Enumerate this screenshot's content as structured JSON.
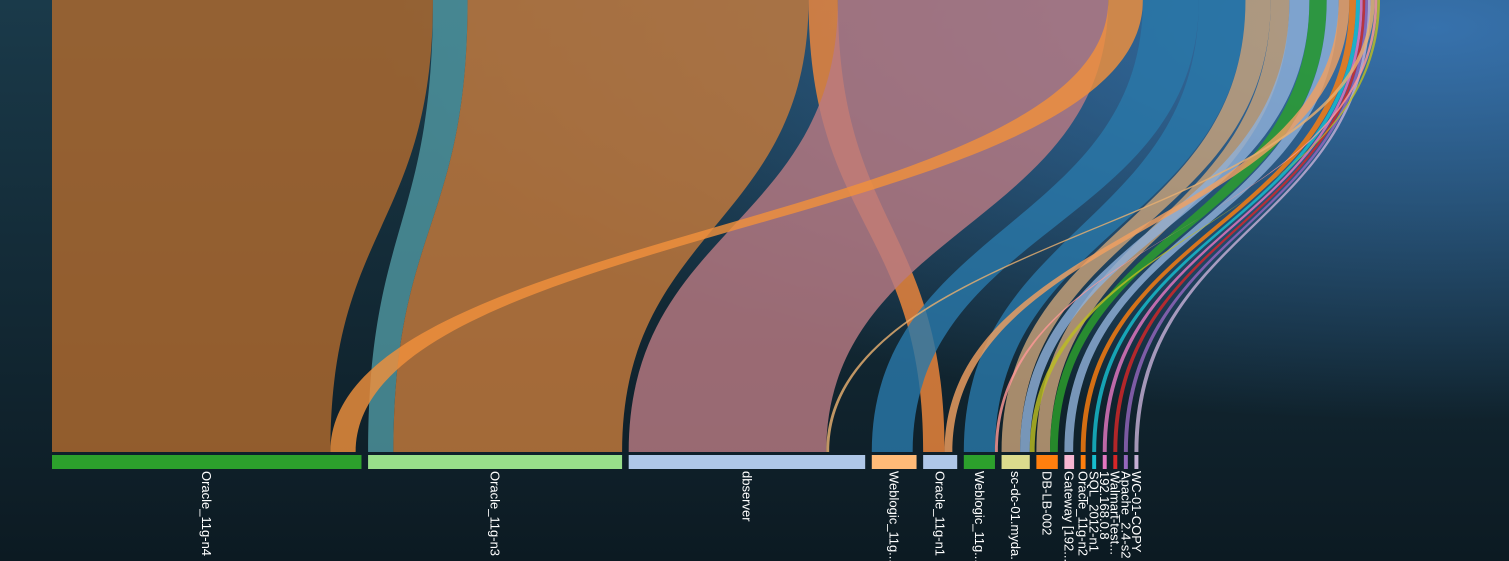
{
  "chart_data": {
    "type": "sankey",
    "title": "",
    "targets": [
      {
        "label": "Oracle_11g-n4",
        "value": 31.8,
        "color": "#2ca02c"
      },
      {
        "label": "Oracle_11g-n3",
        "value": 26.1,
        "color": "#98df8a"
      },
      {
        "label": "dbserver",
        "value": 24.3,
        "color": "#aec7e8"
      },
      {
        "label": "Weblogic_11g...",
        "value": 4.6,
        "color": "#ffbb78"
      },
      {
        "label": "Oracle_11g-n1",
        "value": 3.5,
        "color": "#aec7e8"
      },
      {
        "label": "Weblogic_11g...",
        "value": 3.2,
        "color": "#2ca02c"
      },
      {
        "label": "sc-dc-01.myda...",
        "value": 2.9,
        "color": "#dbdb8d"
      },
      {
        "label": "DB-LB-002",
        "value": 2.2,
        "color": "#ff7f0e"
      },
      {
        "label": "Gateway [192...",
        "value": 1.0,
        "color": "#f7b6d2"
      },
      {
        "label": "Oracle_11g-n2",
        "value": 0.5,
        "color": "#ff7f0e"
      },
      {
        "label": "SQL_2012-n1",
        "value": 0.3,
        "color": "#17becf"
      },
      {
        "label": "192.168.0.8",
        "value": 0.2,
        "color": "#e377c2"
      },
      {
        "label": "Walmart-test...",
        "value": 0.2,
        "color": "#d62728"
      },
      {
        "label": "Apache_2.4-s2",
        "value": 0.2,
        "color": "#9467bd"
      },
      {
        "label": "WC-01-COPY",
        "value": 0.2,
        "color": "#c5b0d5"
      }
    ],
    "flows": [
      {
        "source": 0,
        "target": 0,
        "value": 28.6,
        "color": "#b06a2e"
      },
      {
        "source": 0,
        "target": 1,
        "value": 2.6,
        "color": "#4f96a0"
      },
      {
        "source": 1,
        "target": 1,
        "value": 25.6,
        "color": "#c47a3c"
      },
      {
        "source": 1,
        "target": 4,
        "value": 2.2,
        "color": "#f0883c"
      },
      {
        "source": 2,
        "target": 2,
        "value": 20.3,
        "color": "#b87a82"
      },
      {
        "source": 3,
        "target": 0,
        "value": 2.6,
        "color": "#f0903c"
      },
      {
        "source": 3,
        "target": 3,
        "value": 4.2,
        "color": "#2a78a8"
      },
      {
        "source": 3,
        "target": 5,
        "value": 3.5,
        "color": "#2a78a8"
      },
      {
        "source": 4,
        "target": 6,
        "value": 1.9,
        "color": "#c8a27a"
      },
      {
        "source": 4,
        "target": 7,
        "value": 1.4,
        "color": "#c8a27a"
      },
      {
        "source": 5,
        "target": 6,
        "value": 1.5,
        "color": "#8fb0d8"
      },
      {
        "source": 6,
        "target": 7,
        "value": 1.3,
        "color": "#2ca02c"
      },
      {
        "source": 6,
        "target": 8,
        "value": 0.9,
        "color": "#8fb0d8"
      },
      {
        "source": 7,
        "target": 4,
        "value": 0.8,
        "color": "#f0a060"
      },
      {
        "source": 7,
        "target": 9,
        "value": 0.5,
        "color": "#ff7f0e"
      },
      {
        "source": 8,
        "target": 10,
        "value": 0.3,
        "color": "#17becf"
      },
      {
        "source": 9,
        "target": 11,
        "value": 0.2,
        "color": "#e377c2"
      },
      {
        "source": 10,
        "target": 12,
        "value": 0.2,
        "color": "#d62728"
      },
      {
        "source": 11,
        "target": 13,
        "value": 0.2,
        "color": "#9467bd"
      },
      {
        "source": 12,
        "target": 14,
        "value": 0.2,
        "color": "#c5b0d5"
      },
      {
        "source": 13,
        "target": 2,
        "value": 0.3,
        "color": "#e8b070"
      },
      {
        "source": 14,
        "target": 5,
        "value": 0.2,
        "color": "#ff9896"
      },
      {
        "source": 15,
        "target": 6,
        "value": 0.2,
        "color": "#bcbd22"
      }
    ],
    "colors": {
      "background_top": "#1a3a4a",
      "background_bottom": "#0c1a22",
      "background_glow": "#3a78b8",
      "label": "#ffffff"
    }
  }
}
